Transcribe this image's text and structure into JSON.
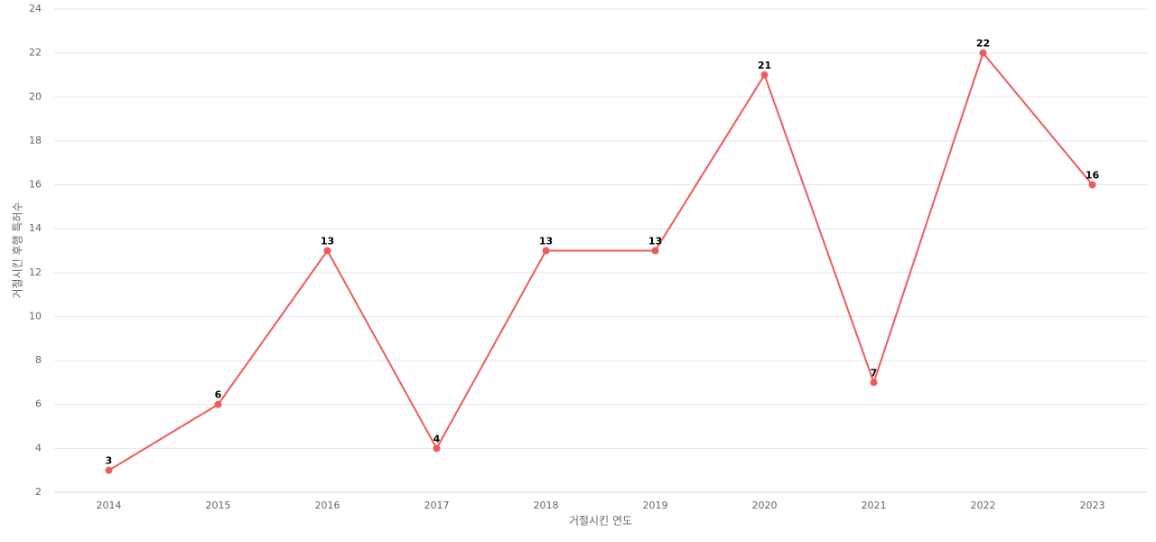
{
  "chart_data": {
    "type": "line",
    "categories": [
      "2014",
      "2015",
      "2016",
      "2017",
      "2018",
      "2019",
      "2020",
      "2021",
      "2022",
      "2023"
    ],
    "series": [
      {
        "name": "거절시킨 후행 특허수",
        "color": "#ef5b5b",
        "values": [
          3,
          6,
          13,
          4,
          13,
          13,
          21,
          7,
          22,
          16
        ]
      }
    ],
    "x_label": "거절시킨 연도",
    "y_label": "거절시킨 후행 특허수",
    "ylim": [
      2,
      24
    ],
    "yticks": [
      2,
      4,
      6,
      8,
      10,
      12,
      14,
      16,
      18,
      20,
      22,
      24
    ],
    "grid": true
  }
}
